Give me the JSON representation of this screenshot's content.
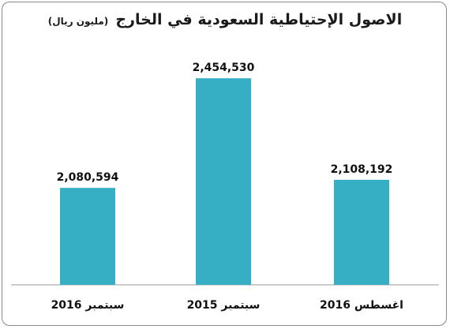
{
  "chart_data": {
    "type": "bar",
    "title": "الاصول الإحتياطية السعودية في الخارج",
    "subtitle": "(مليون ريال)",
    "categories": [
      "سبتمبر 2016",
      "سبتمبر 2015",
      "اغسطس 2016"
    ],
    "values": [
      2080594,
      2454530,
      2108192
    ],
    "value_labels": [
      "2,080,594",
      "2,454,530",
      "2,108,192"
    ],
    "ylim": [
      1750000,
      2560000
    ],
    "bar_color": "#36aec4",
    "grid": false,
    "legend": "none"
  }
}
